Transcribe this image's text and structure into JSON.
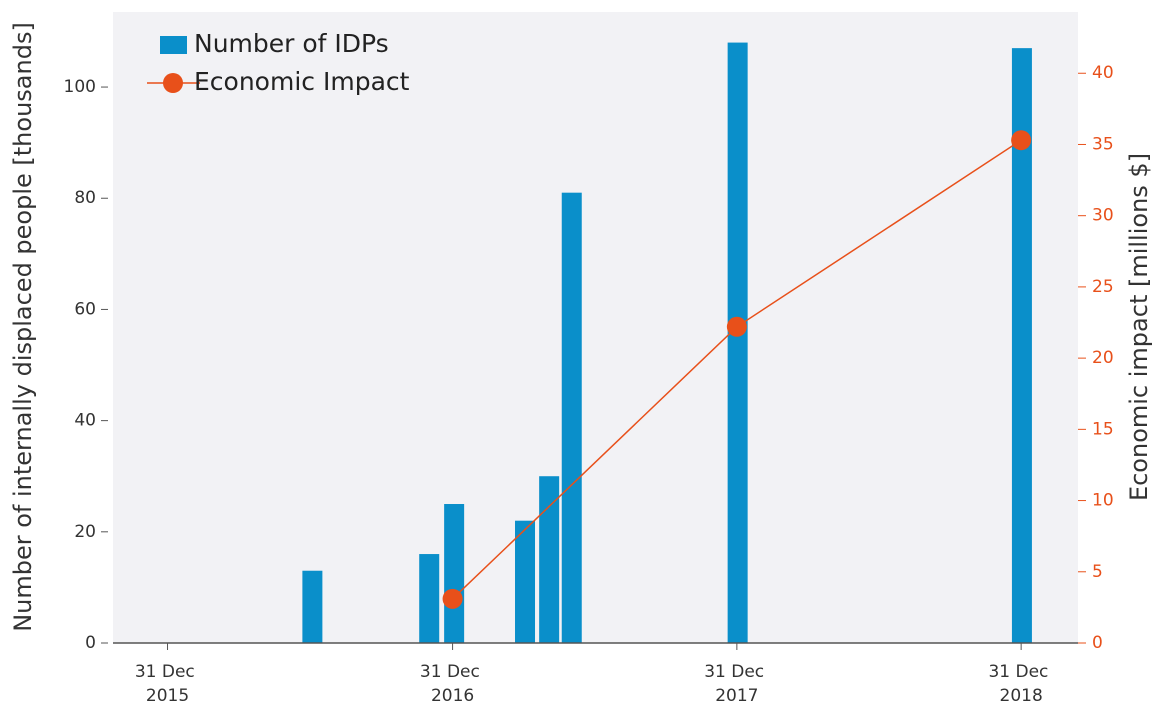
{
  "chart_data": {
    "type": "bar",
    "y_label": "Number of internally displaced people [thousands]",
    "y2_label": "Economic impact [millions $]",
    "xlim": [
      "2015-10-22",
      "2019-03-14"
    ],
    "xticks": [
      {
        "value": "2015-12-31",
        "label": "31 Dec 2015"
      },
      {
        "value": "2016-12-31",
        "label": "31 Dec 2016"
      },
      {
        "value": "2017-12-31",
        "label": "31 Dec 2017"
      },
      {
        "value": "2018-12-31",
        "label": "31 Dec 2018"
      }
    ],
    "ylim": [
      0,
      113.5
    ],
    "yticks": [
      0,
      20,
      40,
      60,
      80,
      100
    ],
    "y2lim": [
      0,
      44.3
    ],
    "y2ticks": [
      0,
      5,
      10,
      15,
      20,
      25,
      30,
      35,
      40
    ],
    "legend": "upper left",
    "series": [
      {
        "name": "Number of IDPs",
        "type": "bar",
        "color": "#0a8fca",
        "x": [
          "2016-07-04",
          "2016-12-01",
          "2017-01-02",
          "2017-04-03",
          "2017-05-04",
          "2017-06-02",
          "2018-01-01",
          "2019-01-01"
        ],
        "values": [
          13,
          16,
          25,
          22,
          30,
          81,
          108,
          107
        ]
      },
      {
        "name": "Economic Impact",
        "type": "line",
        "axis": "y2",
        "color": "#e8501a",
        "x": [
          "2016-12-31",
          "2017-12-31",
          "2018-12-31"
        ],
        "values": [
          3.1,
          22.2,
          35.3
        ]
      }
    ]
  }
}
